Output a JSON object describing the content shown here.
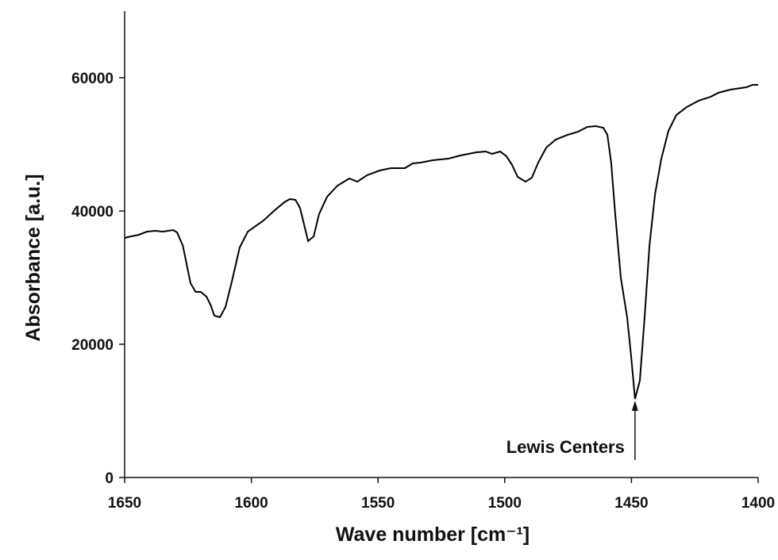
{
  "chart_data": {
    "type": "line",
    "xlabel": "Wave number  [cm⁻¹]",
    "ylabel": "Absorbance [a.u.]",
    "annotation": "Lewis Centers",
    "color": "#000000",
    "xlim": [
      1650,
      1400
    ],
    "xticks": [
      1650,
      1600,
      1550,
      1500,
      1450,
      1400
    ],
    "ylim": [
      0,
      70000
    ],
    "yticks": [
      0,
      20000,
      40000,
      60000
    ],
    "x": [
      1650,
      1647.5,
      1644.4,
      1641.2,
      1638,
      1635,
      1632.8,
      1630.9,
      1629.3,
      1627,
      1624,
      1622,
      1620,
      1617.7,
      1616,
      1614.6,
      1612.4,
      1610.2,
      1607.7,
      1604.6,
      1601.4,
      1598.3,
      1595.2,
      1591.1,
      1587,
      1584.8,
      1582.6,
      1580.8,
      1579.2,
      1577.6,
      1575.4,
      1573.3,
      1570.1,
      1566,
      1561.3,
      1558.2,
      1554.4,
      1549.4,
      1545,
      1539.4,
      1536.3,
      1533.2,
      1528.4,
      1522.2,
      1517.5,
      1511.2,
      1507.5,
      1505,
      1501.8,
      1499.3,
      1497.1,
      1494.9,
      1491.8,
      1489.3,
      1486.8,
      1483.6,
      1479.9,
      1475.2,
      1471.1,
      1467.4,
      1464.2,
      1461.1,
      1459.5,
      1458,
      1456.4,
      1454.2,
      1451.7,
      1450.1,
      1448.6,
      1446.7,
      1444.8,
      1442.9,
      1440.7,
      1438.2,
      1435.4,
      1432.3,
      1428.2,
      1423.5,
      1418.8,
      1415.7,
      1411,
      1404.7,
      1402.2,
      1400
    ],
    "values": [
      35950,
      36190,
      36430,
      36900,
      37020,
      36900,
      37020,
      37140,
      36790,
      34760,
      29170,
      27860,
      27860,
      27140,
      25830,
      24290,
      24050,
      25600,
      29400,
      34520,
      36900,
      37740,
      38570,
      40000,
      41310,
      41790,
      41670,
      40480,
      37980,
      35480,
      36190,
      39520,
      42140,
      43810,
      44880,
      44400,
      45360,
      46070,
      46430,
      46430,
      47140,
      47260,
      47620,
      47860,
      48330,
      48810,
      48930,
      48570,
      48930,
      48210,
      46900,
      45120,
      44400,
      45000,
      47260,
      49520,
      50710,
      51430,
      51900,
      52620,
      52740,
      52500,
      51430,
      47260,
      39520,
      30000,
      24050,
      18100,
      11790,
      14520,
      24050,
      34760,
      42500,
      47860,
      52020,
      54400,
      55600,
      56550,
      57140,
      57740,
      58210,
      58570,
      58930,
      58930
    ]
  }
}
